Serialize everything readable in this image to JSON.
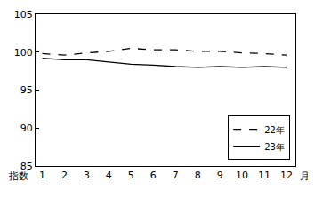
{
  "chart_data": {
    "type": "line",
    "x": [
      1,
      2,
      3,
      4,
      5,
      6,
      7,
      8,
      9,
      10,
      11,
      12
    ],
    "xlabel": "月",
    "ylabel": "指数",
    "series": [
      {
        "name": "22年",
        "color": "#000000",
        "line_style": "dash",
        "values": [
          99.8,
          99.6,
          99.9,
          100.1,
          100.5,
          100.3,
          100.3,
          100.1,
          100.1,
          99.9,
          99.8,
          99.6
        ]
      },
      {
        "name": "23年",
        "color": "#000000",
        "line_style": "solid",
        "values": [
          99.2,
          99.0,
          99.0,
          98.7,
          98.4,
          98.3,
          98.1,
          98.0,
          98.1,
          98.0,
          98.1,
          98.0
        ]
      }
    ],
    "xlim": [
      0.7,
      12.4
    ],
    "xticks": [
      1,
      2,
      3,
      4,
      5,
      6,
      7,
      8,
      9,
      10,
      11,
      12
    ],
    "ylim": [
      85,
      105
    ],
    "yticks": [
      85,
      90,
      95,
      100,
      105
    ],
    "grid": false,
    "legend": "lower right"
  }
}
